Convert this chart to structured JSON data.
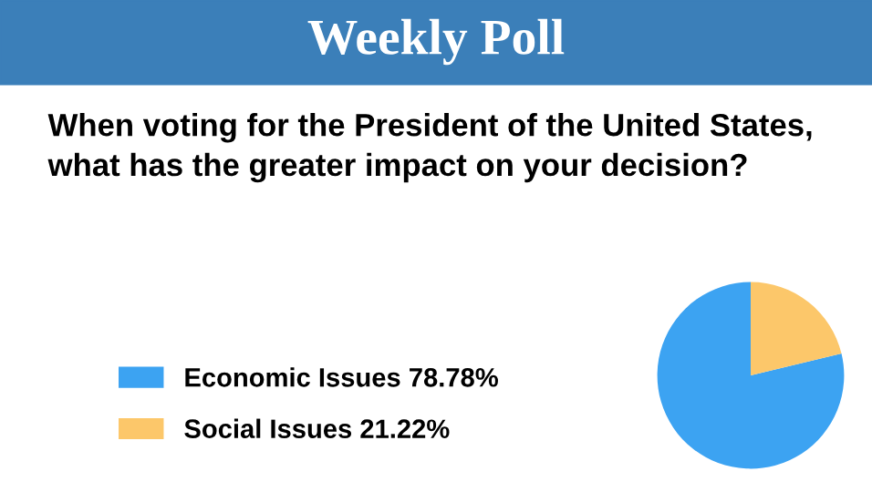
{
  "chart_data": {
    "type": "pie",
    "title": "Weekly Poll",
    "subtitle": "When voting for the President of the United States, what has the greater impact on your decision?",
    "categories": [
      "Economic Issues",
      "Social Issues"
    ],
    "values": [
      78.78,
      21.22
    ],
    "value_labels": [
      "78.78%",
      "21.22%"
    ],
    "colors": [
      "#3ca3f2",
      "#fcc76a"
    ],
    "legend": "left"
  }
}
